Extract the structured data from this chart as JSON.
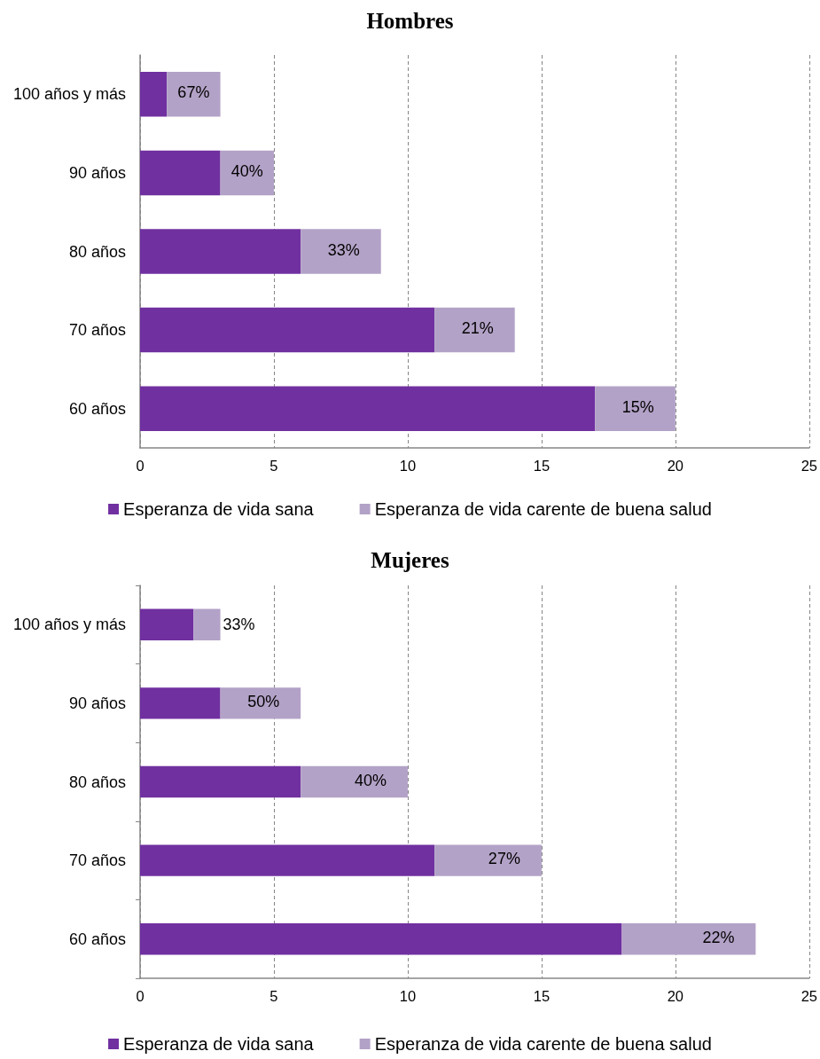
{
  "chart_data": [
    {
      "type": "bar",
      "title": "Hombres",
      "orientation": "horizontal",
      "stacked": true,
      "categories": [
        "100 años y más",
        "90 años",
        "80 años",
        "70 años",
        "60 años"
      ],
      "series": [
        {
          "name": "Esperanza de vida sana",
          "color": "#7030a0",
          "values": [
            1,
            3,
            6,
            11,
            17
          ]
        },
        {
          "name": "Esperanza de vida carente de buena salud",
          "color": "#b3a2c7",
          "values": [
            2,
            2,
            3,
            3,
            3
          ]
        }
      ],
      "annotations": [
        {
          "text": "67%",
          "x": 3,
          "y": "100 años y más"
        },
        {
          "text": "40%",
          "x": 5,
          "y": "90 años"
        },
        {
          "text": "33%",
          "x": 9,
          "y": "80 años"
        },
        {
          "text": "21%",
          "x": 14,
          "y": "70 años"
        },
        {
          "text": "15%",
          "x": 20,
          "y": "60 años"
        }
      ],
      "xlim": [
        0,
        25
      ],
      "xticks": [
        0,
        5,
        10,
        15,
        20,
        25
      ],
      "grid": "x",
      "legend": "bottom"
    },
    {
      "type": "bar",
      "title": "Mujeres",
      "orientation": "horizontal",
      "stacked": true,
      "categories": [
        "100 años y más",
        "90 años",
        "80 años",
        "70 años",
        "60 años"
      ],
      "series": [
        {
          "name": "Esperanza de vida sana",
          "color": "#7030a0",
          "values": [
            2,
            3,
            6,
            11,
            18
          ]
        },
        {
          "name": "Esperanza de vida carente de buena salud",
          "color": "#b3a2c7",
          "values": [
            1,
            3,
            4,
            4,
            5
          ]
        }
      ],
      "annotations": [
        {
          "text": "33%",
          "x": 3,
          "y": "100 años y más"
        },
        {
          "text": "50%",
          "x": 6,
          "y": "90 años"
        },
        {
          "text": "40%",
          "x": 10,
          "y": "80 años"
        },
        {
          "text": "27%",
          "x": 15,
          "y": "70 años"
        },
        {
          "text": "22%",
          "x": 23,
          "y": "60 años"
        }
      ],
      "xlim": [
        0,
        25
      ],
      "xticks": [
        0,
        5,
        10,
        15,
        20,
        25
      ],
      "grid": "x",
      "legend": "bottom"
    }
  ]
}
